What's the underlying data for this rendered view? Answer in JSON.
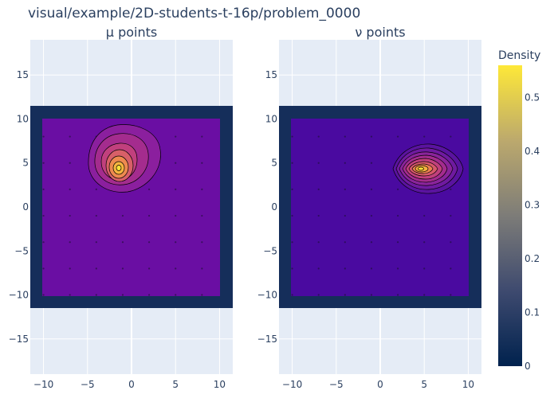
{
  "title": "visual/example/2D-students-t-16p/problem_0000",
  "colors": {
    "plot_bg": "#e5ecf6",
    "grid": "#ffffff",
    "tick_text": "#2a3f5f",
    "frame": "#152e5a"
  },
  "colorbar": {
    "title": "Density",
    "colorscale": "cividis",
    "range": [
      0,
      0.56
    ],
    "ticks": [
      "0",
      "0.1",
      "0.2",
      "0.3",
      "0.4",
      "0.5"
    ],
    "tick_values": [
      0,
      0.1,
      0.2,
      0.3,
      0.4,
      0.5
    ]
  },
  "chart_data": [
    {
      "type": "contour",
      "subplot_title": "μ points",
      "x_ticks": [
        "−10",
        "−5",
        "0",
        "5",
        "10"
      ],
      "x_tick_values": [
        -10,
        -5,
        0,
        5,
        10
      ],
      "y_ticks": [
        "15",
        "10",
        "5",
        "0",
        "−5",
        "−10",
        "−15"
      ],
      "y_tick_values": [
        15,
        10,
        5,
        0,
        -5,
        -10,
        -15
      ],
      "xlim": [
        -11.5,
        11.5
      ],
      "ylim": [
        -19,
        19
      ],
      "grid": true,
      "density_box": [
        -10,
        10,
        -10,
        10
      ],
      "peak": {
        "x": -1.5,
        "y": 4.3,
        "density": 0.56
      },
      "point_grid": {
        "x": [
          -10,
          -7,
          -4,
          -1,
          2,
          5,
          8
        ],
        "y": [
          -10,
          -7,
          -4,
          -1,
          2,
          5,
          8
        ]
      }
    },
    {
      "type": "contour",
      "subplot_title": "ν points",
      "x_ticks": [
        "−10",
        "−5",
        "0",
        "5",
        "10"
      ],
      "x_tick_values": [
        -10,
        -5,
        0,
        5,
        10
      ],
      "y_ticks": [
        "15",
        "10",
        "5",
        "0",
        "−5",
        "−10",
        "−15"
      ],
      "y_tick_values": [
        15,
        10,
        5,
        0,
        -5,
        -10,
        -15
      ],
      "xlim": [
        -11.5,
        11.5
      ],
      "ylim": [
        -19,
        19
      ],
      "grid": true,
      "density_box": [
        -10,
        10,
        -10,
        10
      ],
      "peak": {
        "x": 4.5,
        "y": 4.3,
        "density": 0.56
      },
      "point_grid": {
        "x": [
          -10,
          -7,
          -4,
          -1,
          2,
          5,
          8
        ],
        "y": [
          -10,
          -7,
          -4,
          -1,
          2,
          5,
          8
        ]
      }
    }
  ]
}
